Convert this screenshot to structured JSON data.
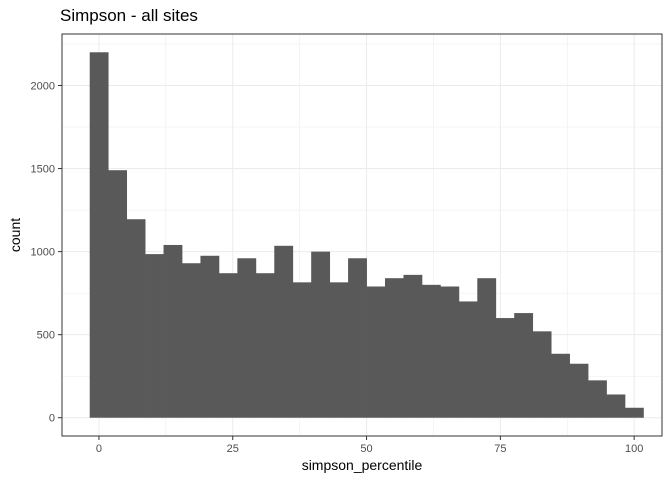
{
  "chart_data": {
    "type": "bar",
    "title": "Simpson - all sites",
    "xlabel": "simpson_percentile",
    "ylabel": "count",
    "bin_width": 3.448,
    "bin_centers": [
      0,
      3.448,
      6.897,
      10.345,
      13.793,
      17.241,
      20.69,
      24.138,
      27.586,
      31.034,
      34.483,
      37.931,
      41.379,
      44.828,
      48.276,
      51.724,
      55.172,
      58.621,
      62.069,
      65.517,
      68.966,
      72.414,
      75.862,
      79.31,
      82.759,
      86.207,
      89.655,
      93.103,
      96.552,
      100
    ],
    "values": [
      2200,
      1490,
      1195,
      985,
      1040,
      930,
      975,
      870,
      960,
      870,
      1035,
      815,
      1000,
      815,
      960,
      790,
      840,
      860,
      800,
      790,
      700,
      840,
      600,
      630,
      520,
      385,
      325,
      225,
      140,
      60
    ],
    "xlim": [
      -6.9,
      105.2
    ],
    "ylim": [
      -110,
      2310
    ],
    "x_ticks": [
      0,
      25,
      50,
      75,
      100
    ],
    "x_tick_labels": [
      "0",
      "25",
      "50",
      "75",
      "100"
    ],
    "y_ticks": [
      0,
      500,
      1000,
      1500,
      2000
    ],
    "y_tick_labels": [
      "0",
      "500",
      "1000",
      "1500",
      "2000"
    ],
    "grid": true,
    "bar_color": "#595959",
    "panel_background": "#ffffff",
    "grid_color": "#ebebeb",
    "panel_border_color": "#333333"
  }
}
